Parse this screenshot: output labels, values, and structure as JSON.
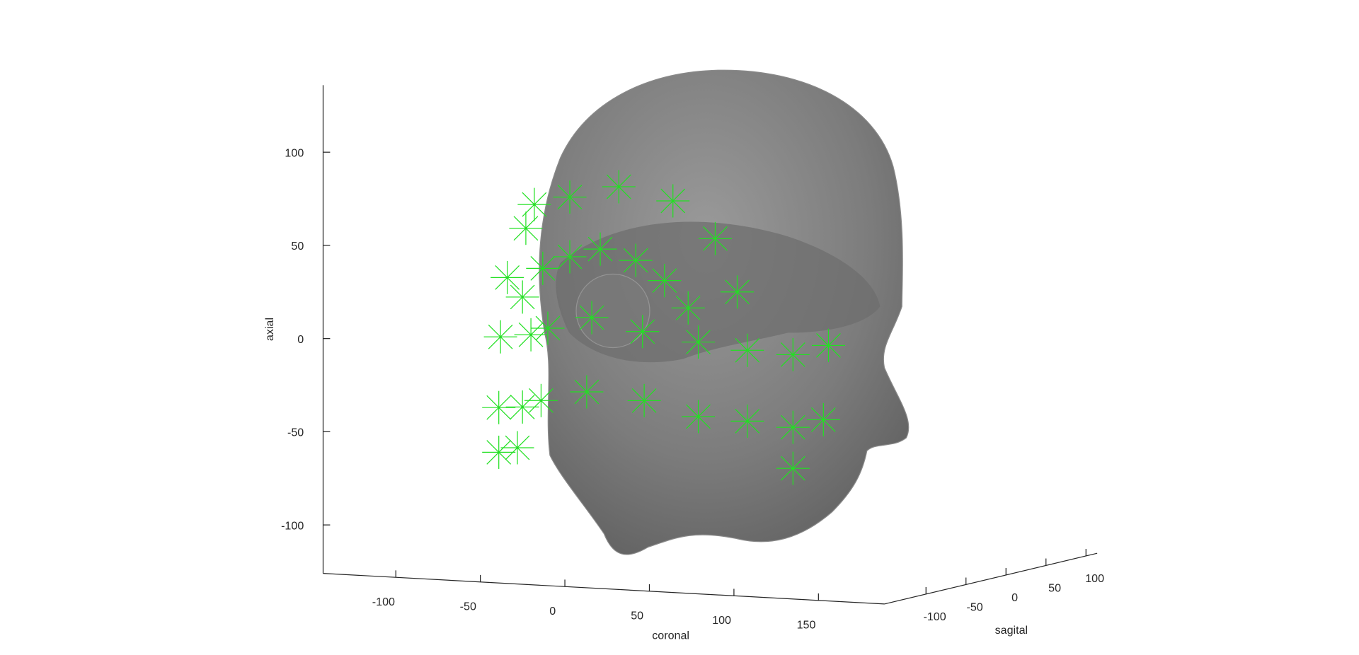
{
  "chart_data": {
    "type": "scatter3d",
    "xlabel": "coronal",
    "ylabel": "sagital",
    "zlabel": "axial",
    "xlim": [
      -143,
      189
    ],
    "ylim": [
      -152,
      114
    ],
    "zlim": [
      -126,
      136
    ],
    "xticks": [
      -100,
      -50,
      0,
      50,
      100,
      150
    ],
    "yticks": [
      -100,
      -50,
      0,
      50,
      100
    ],
    "zticks": [
      -100,
      -50,
      0,
      50,
      100
    ],
    "marker": "*",
    "color": "#22e022",
    "x": [
      -90,
      -95,
      -69,
      -40,
      -8,
      17,
      -106,
      -97,
      -85,
      -69,
      -51,
      -30,
      -13,
      30,
      1,
      -56,
      -26,
      7,
      36,
      -110,
      -92,
      -82,
      -59,
      -25,
      -111,
      -97,
      -86,
      7,
      36,
      63,
      81,
      -111,
      -100,
      63,
      84,
      63
    ],
    "y": [
      0,
      0,
      0,
      0,
      0,
      0,
      0,
      0,
      0,
      0,
      0,
      0,
      0,
      0,
      0,
      0,
      0,
      0,
      0,
      0,
      0,
      0,
      0,
      0,
      0,
      0,
      0,
      0,
      0,
      0,
      0,
      0,
      0,
      0,
      0,
      0
    ],
    "z": [
      59,
      46,
      64,
      71,
      65,
      46,
      19,
      9,
      25,
      32,
      37,
      32,
      22,
      18,
      8,
      0,
      -6,
      -10,
      -13,
      -13,
      -11,
      -7,
      -40,
      -43,
      -51,
      -50,
      -46,
      -50,
      -51,
      -53,
      -48,
      -75,
      -72,
      -75,
      -8,
      -14
    ]
  }
}
